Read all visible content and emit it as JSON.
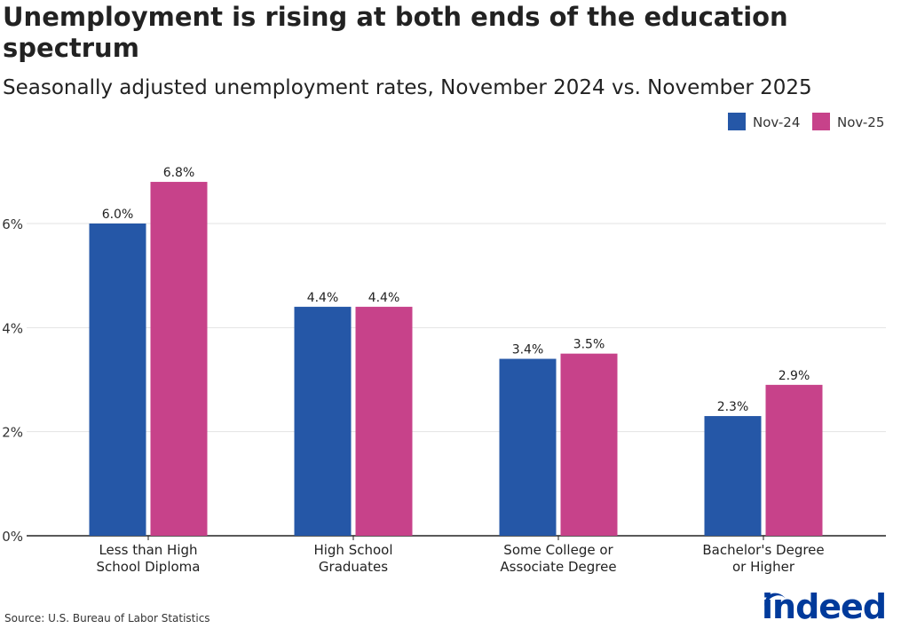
{
  "title": "Unemployment is rising at both ends of the education spectrum",
  "subtitle": "Seasonally adjusted unemployment rates, November 2024 vs. November 2025",
  "source": "Source: U.S. Bureau of Labor Statistics",
  "logo_text": "indeed",
  "colors": {
    "nov24": "#2557a7",
    "nov25": "#c7428a",
    "logo": "#003a9b"
  },
  "chart_data": {
    "type": "bar",
    "categories": [
      [
        "Less than High",
        "School Diploma"
      ],
      [
        "High School",
        "Graduates"
      ],
      [
        "Some College or",
        "Associate Degree"
      ],
      [
        "Bachelor's Degree",
        "or Higher"
      ]
    ],
    "series": [
      {
        "name": "Nov-24",
        "values": [
          6.0,
          4.4,
          3.4,
          2.3
        ],
        "labels": [
          "6.0%",
          "4.4%",
          "3.4%",
          "2.3%"
        ]
      },
      {
        "name": "Nov-25",
        "values": [
          6.8,
          4.4,
          3.5,
          2.9
        ],
        "labels": [
          "6.8%",
          "4.4%",
          "3.5%",
          "2.9%"
        ]
      }
    ],
    "yticks": [
      0,
      2,
      4,
      6
    ],
    "ytick_labels": [
      "0%",
      "2%",
      "4%",
      "6%"
    ],
    "ylim": [
      0,
      7
    ],
    "grid": true,
    "legend": "top-right"
  }
}
